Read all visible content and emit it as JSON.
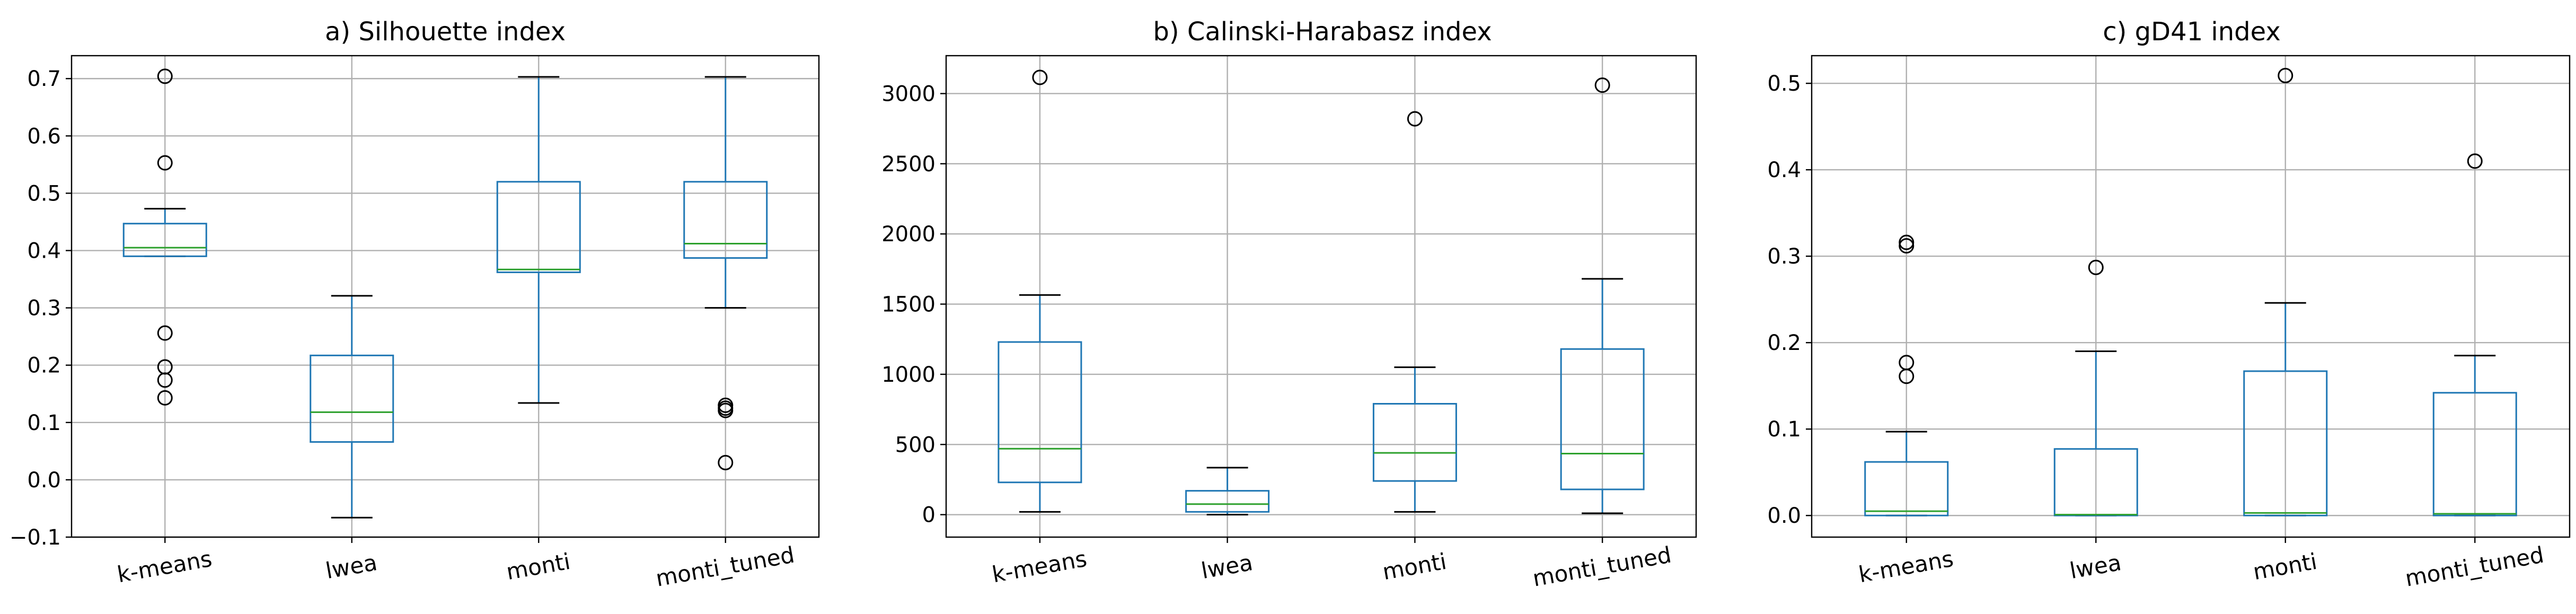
{
  "colors": {
    "box": "#1f77b4",
    "median": "#2ca02c",
    "grid": "#b0b0b0",
    "axis": "#000000"
  },
  "chart_data": [
    {
      "type": "box",
      "title": "a) Silhouette index",
      "categories": [
        "k-means",
        "lwea",
        "monti",
        "monti_tuned"
      ],
      "ylim": [
        -0.1,
        0.74
      ],
      "yticks": [
        -0.1,
        0.0,
        0.1,
        0.2,
        0.3,
        0.4,
        0.5,
        0.6,
        0.7
      ],
      "ytick_labels": [
        "−0.1",
        "0.0",
        "0.1",
        "0.2",
        "0.3",
        "0.4",
        "0.5",
        "0.6",
        "0.7"
      ],
      "grid": true,
      "boxes": [
        {
          "name": "k-means",
          "whisker_low": 0.39,
          "q1": 0.39,
          "median": 0.405,
          "q3": 0.447,
          "whisker_high": 0.473,
          "fliers": [
            0.704,
            0.553,
            0.256,
            0.197,
            0.174,
            0.143
          ]
        },
        {
          "name": "lwea",
          "whisker_low": -0.066,
          "q1": 0.066,
          "median": 0.118,
          "q3": 0.217,
          "whisker_high": 0.321,
          "fliers": []
        },
        {
          "name": "monti",
          "whisker_low": 0.134,
          "q1": 0.362,
          "median": 0.367,
          "q3": 0.52,
          "whisker_high": 0.703,
          "fliers": []
        },
        {
          "name": "monti_tuned",
          "whisker_low": 0.3,
          "q1": 0.387,
          "median": 0.412,
          "q3": 0.52,
          "whisker_high": 0.703,
          "fliers": [
            0.13,
            0.125,
            0.121,
            0.03
          ]
        }
      ]
    },
    {
      "type": "box",
      "title": "b) Calinski-Harabasz index",
      "categories": [
        "k-means",
        "lwea",
        "monti",
        "monti_tuned"
      ],
      "ylim": [
        -160,
        3270
      ],
      "yticks": [
        0,
        500,
        1000,
        1500,
        2000,
        2500,
        3000
      ],
      "ytick_labels": [
        "0",
        "500",
        "1000",
        "1500",
        "2000",
        "2500",
        "3000"
      ],
      "grid": true,
      "boxes": [
        {
          "name": "k-means",
          "whisker_low": 20,
          "q1": 230,
          "median": 470,
          "q3": 1230,
          "whisker_high": 1565,
          "fliers": [
            3115
          ]
        },
        {
          "name": "lwea",
          "whisker_low": 0,
          "q1": 20,
          "median": 75,
          "q3": 170,
          "whisker_high": 335,
          "fliers": []
        },
        {
          "name": "monti",
          "whisker_low": 20,
          "q1": 240,
          "median": 440,
          "q3": 790,
          "whisker_high": 1050,
          "fliers": [
            2820
          ]
        },
        {
          "name": "monti_tuned",
          "whisker_low": 10,
          "q1": 180,
          "median": 435,
          "q3": 1180,
          "whisker_high": 1680,
          "fliers": [
            3060
          ]
        }
      ]
    },
    {
      "type": "box",
      "title": "c) gD41 index",
      "categories": [
        "k-means",
        "lwea",
        "monti",
        "monti_tuned"
      ],
      "ylim": [
        -0.025,
        0.532
      ],
      "yticks": [
        0.0,
        0.1,
        0.2,
        0.3,
        0.4,
        0.5
      ],
      "ytick_labels": [
        "0.0",
        "0.1",
        "0.2",
        "0.3",
        "0.4",
        "0.5"
      ],
      "grid": true,
      "boxes": [
        {
          "name": "k-means",
          "whisker_low": 0,
          "q1": 0,
          "median": 0.005,
          "q3": 0.062,
          "whisker_high": 0.097,
          "fliers": [
            0.316,
            0.312,
            0.177,
            0.161
          ]
        },
        {
          "name": "lwea",
          "whisker_low": 0,
          "q1": 0,
          "median": 0.001,
          "q3": 0.077,
          "whisker_high": 0.19,
          "fliers": [
            0.287
          ]
        },
        {
          "name": "monti",
          "whisker_low": 0,
          "q1": 0,
          "median": 0.003,
          "q3": 0.167,
          "whisker_high": 0.246,
          "fliers": [
            0.509
          ]
        },
        {
          "name": "monti_tuned",
          "whisker_low": 0,
          "q1": 0,
          "median": 0.002,
          "q3": 0.142,
          "whisker_high": 0.185,
          "fliers": [
            0.41
          ]
        }
      ]
    }
  ]
}
